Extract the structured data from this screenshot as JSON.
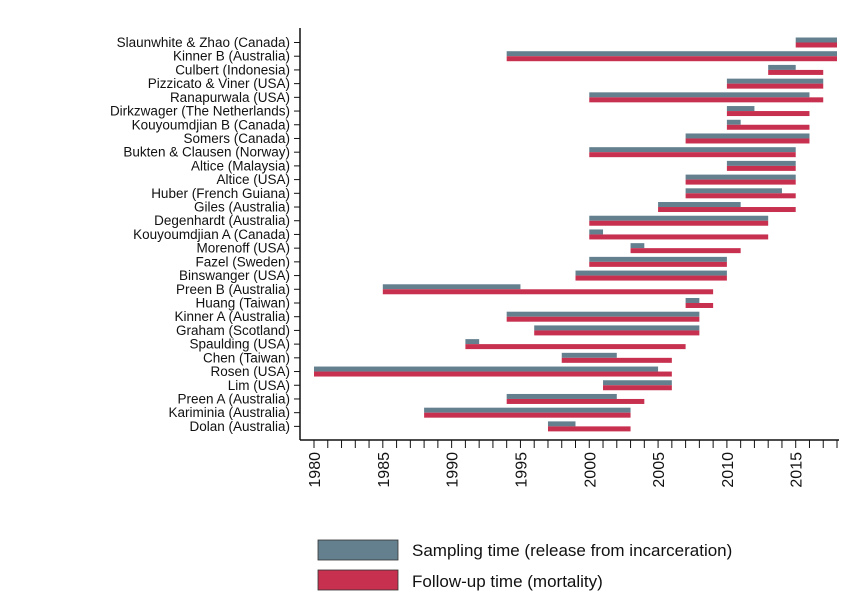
{
  "chart_data": {
    "type": "bar",
    "orientation": "horizontal-range",
    "xlim": [
      1980,
      2018
    ],
    "x_ticks": [
      1980,
      1985,
      1990,
      1995,
      2000,
      2005,
      2010,
      2015
    ],
    "categories": [
      "Slaunwhite & Zhao (Canada)",
      "Kinner B (Australia)",
      "Culbert (Indonesia)",
      "Pizzicato & Viner (USA)",
      "Ranapurwala (USA)",
      "Dirkzwager (The Netherlands)",
      "Kouyoumdjian B (Canada)",
      "Somers (Canada)",
      "Bukten & Clausen (Norway)",
      "Altice (Malaysia)",
      "Altice (USA)",
      "Huber (French Guiana)",
      "Giles (Australia)",
      "Degenhardt (Australia)",
      "Kouyoumdjian A (Canada)",
      "Morenoff (USA)",
      "Fazel (Sweden)",
      "Binswanger (USA)",
      "Preen B (Australia)",
      "Huang (Taiwan)",
      "Kinner A (Australia)",
      "Graham (Scotland)",
      "Spaulding (USA)",
      "Chen (Taiwan)",
      "Rosen (USA)",
      "Lim (USA)",
      "Preen A (Australia)",
      "Kariminia (Australia)",
      "Dolan (Australia)"
    ],
    "series": [
      {
        "name": "Sampling time (release from incarceration)",
        "color": "#64808f",
        "ranges": [
          [
            2015,
            2018
          ],
          [
            1994,
            2018
          ],
          [
            2013,
            2015
          ],
          [
            2010,
            2017
          ],
          [
            2000,
            2016
          ],
          [
            2010,
            2012
          ],
          [
            2010,
            2011
          ],
          [
            2007,
            2016
          ],
          [
            2000,
            2015
          ],
          [
            2010,
            2015
          ],
          [
            2007,
            2015
          ],
          [
            2007,
            2014
          ],
          [
            2005,
            2011
          ],
          [
            2000,
            2013
          ],
          [
            2000,
            2001
          ],
          [
            2003,
            2004
          ],
          [
            2000,
            2010
          ],
          [
            1999,
            2010
          ],
          [
            1985,
            1995
          ],
          [
            2007,
            2008
          ],
          [
            1994,
            2008
          ],
          [
            1996,
            2008
          ],
          [
            1991,
            1992
          ],
          [
            1998,
            2002
          ],
          [
            1980,
            2005
          ],
          [
            2001,
            2006
          ],
          [
            1994,
            2002
          ],
          [
            1988,
            2003
          ],
          [
            1997,
            1999
          ]
        ]
      },
      {
        "name": "Follow-up time (mortality)",
        "color": "#c8304f",
        "ranges": [
          [
            2015,
            2018
          ],
          [
            1994,
            2018
          ],
          [
            2013,
            2017
          ],
          [
            2010,
            2017
          ],
          [
            2000,
            2017
          ],
          [
            2010,
            2016
          ],
          [
            2010,
            2016
          ],
          [
            2007,
            2016
          ],
          [
            2000,
            2015
          ],
          [
            2010,
            2015
          ],
          [
            2007,
            2015
          ],
          [
            2007,
            2015
          ],
          [
            2005,
            2015
          ],
          [
            2000,
            2013
          ],
          [
            2000,
            2013
          ],
          [
            2003,
            2011
          ],
          [
            2000,
            2010
          ],
          [
            1999,
            2010
          ],
          [
            1985,
            2009
          ],
          [
            2007,
            2009
          ],
          [
            1994,
            2008
          ],
          [
            1996,
            2008
          ],
          [
            1991,
            2007
          ],
          [
            1998,
            2006
          ],
          [
            1980,
            2006
          ],
          [
            2001,
            2006
          ],
          [
            1994,
            2004
          ],
          [
            1988,
            2003
          ],
          [
            1997,
            2003
          ]
        ]
      }
    ],
    "legend_position": "bottom"
  }
}
